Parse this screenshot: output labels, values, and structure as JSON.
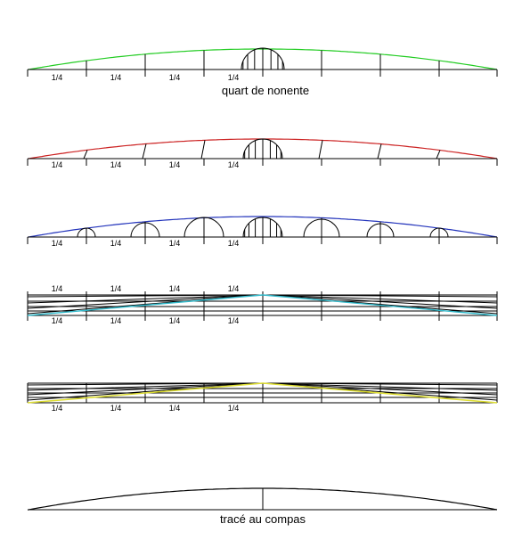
{
  "quarter_label": "1/4",
  "captions": {
    "panel1": "quart de nonente",
    "panel6": "tracé au compas"
  },
  "colors": {
    "panel1_arc": "#22cc22",
    "panel2_arc": "#cc2222",
    "panel3_arc": "#2233bb",
    "panel4_lines": "#33bbcc",
    "panel5_lines": "#dddd33",
    "ink": "#000000"
  }
}
